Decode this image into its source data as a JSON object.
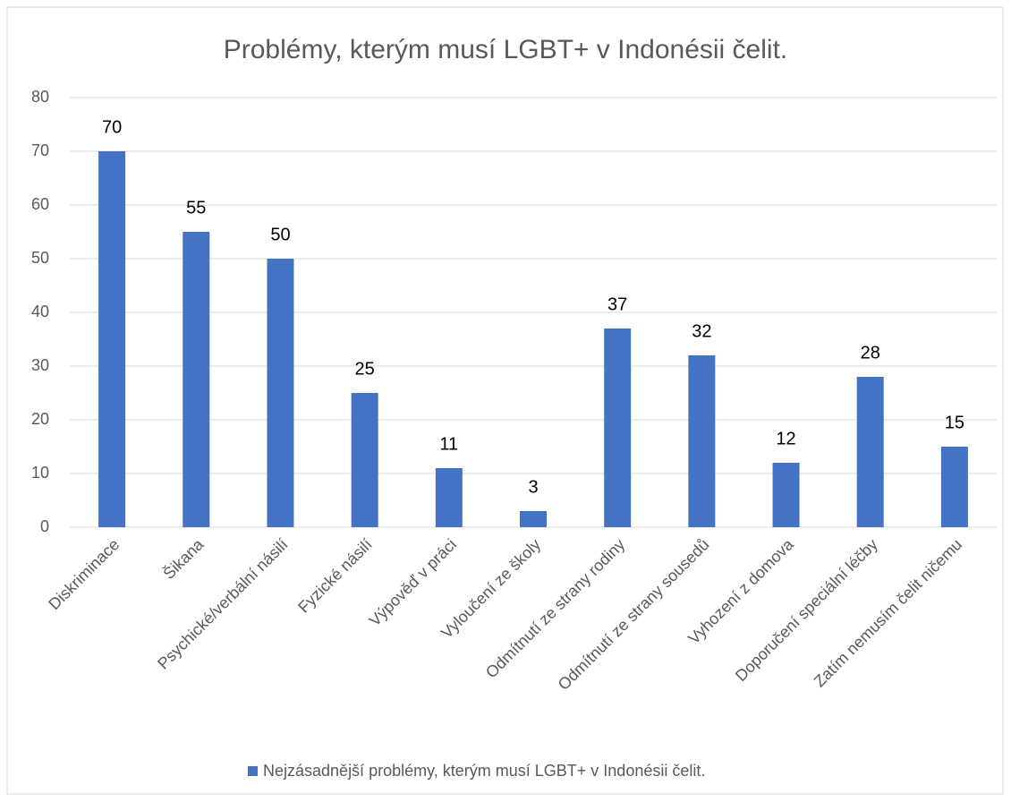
{
  "chart_data": {
    "type": "bar",
    "title": "Problémy, kterým musí LGBT+ v Indonésii čelit.",
    "categories": [
      "Diskriminace",
      "Šikana",
      "Psychické/verbální násilí",
      "Fyzické násilí",
      "Výpověď v práci",
      "Vyloučení ze školy",
      "Odmítnutí ze strany rodiny",
      "Odmítnutí ze strany sousedů",
      "Vyhození z domova",
      "Doporučení speciální léčby",
      "Zatím nemusím čelit ničemu"
    ],
    "series": [
      {
        "name": "Nejzásadnější problémy, kterým musí LGBT+ v Indonésii čelit.",
        "color": "#4472c4",
        "values": [
          70,
          55,
          50,
          25,
          11,
          3,
          37,
          32,
          12,
          28,
          15
        ]
      }
    ],
    "ylim": [
      0,
      80
    ],
    "yticks": [
      0,
      10,
      20,
      30,
      40,
      50,
      60,
      70,
      80
    ],
    "grid": true,
    "legend": "bottom"
  }
}
